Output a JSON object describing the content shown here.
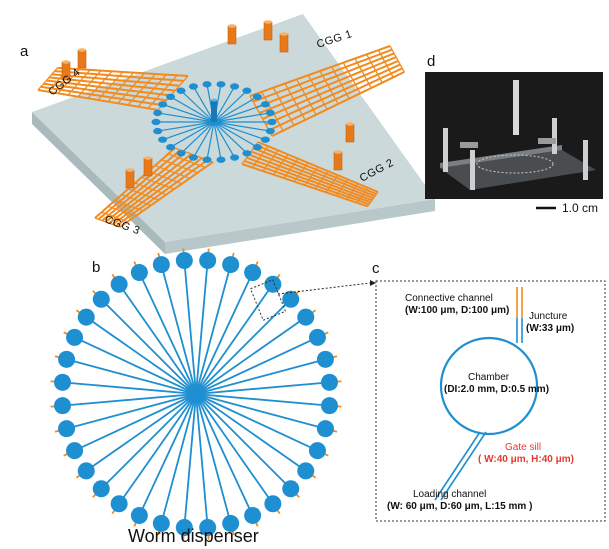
{
  "panels": {
    "a": {
      "letter": "a",
      "cgg": [
        "CGG 1",
        "CGG 2",
        "CGG 3",
        "CGG 4"
      ]
    },
    "b": {
      "letter": "b",
      "caption": "Worm dispenser"
    },
    "c": {
      "letter": "c",
      "connective_title": "Connective channel",
      "connective_dims": "(W:100 μm,  D:100 μm)",
      "juncture_title": "Juncture",
      "juncture_dims": "(W:33 μm)",
      "chamber_title": "Chamber",
      "chamber_dims": "(DI:2.0 mm,  D:0.5 mm)",
      "gate_title": "Gate sill",
      "gate_dims": "( W:40 μm, H:40 μm)",
      "loading_title": "Loading channel",
      "loading_dims": "(W: 60  μm, D:60 μm, L:15 mm )"
    },
    "d": {
      "letter": "d",
      "scale": "1.0 cm"
    }
  },
  "colors": {
    "channel_blue": "#1e8fd0",
    "grid_orange": "#f28a1e",
    "base_plate": "#cbd9db",
    "accent_red": "#e83a2d"
  }
}
